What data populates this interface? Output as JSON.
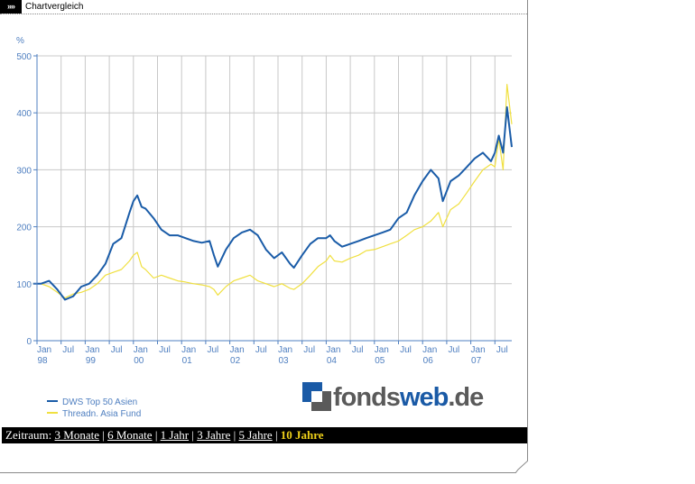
{
  "header": {
    "arrows": "»»",
    "title": "Chartvergleich"
  },
  "logo": {
    "part1": "fonds",
    "part2": "web",
    "part3": ".de"
  },
  "zeitraum": {
    "label": "Zeitraum:",
    "options": [
      "3 Monate",
      "6 Monate",
      "1 Jahr",
      "3 Jahre",
      "5 Jahre"
    ],
    "active": "10 Jahre"
  },
  "colors": {
    "series1": "#1a5ca8",
    "series2": "#f0e040",
    "axis": "#4f7fc0",
    "grid": "#c8c8c8",
    "active": "#f0d21a"
  },
  "chart_data": {
    "type": "line",
    "title": "",
    "ylabel": "%",
    "ylim": [
      0,
      500
    ],
    "yticks": [
      0,
      100,
      200,
      300,
      400,
      500
    ],
    "xlim": [
      1998.0,
      2007.85
    ],
    "xtick_labels": [
      {
        "x": 1998.0,
        "l1": "Jan",
        "l2": "98"
      },
      {
        "x": 1998.5,
        "l1": "Jul",
        "l2": ""
      },
      {
        "x": 1999.0,
        "l1": "Jan",
        "l2": "99"
      },
      {
        "x": 1999.5,
        "l1": "Jul",
        "l2": ""
      },
      {
        "x": 2000.0,
        "l1": "Jan",
        "l2": "00"
      },
      {
        "x": 2000.5,
        "l1": "Jul",
        "l2": ""
      },
      {
        "x": 2001.0,
        "l1": "Jan",
        "l2": "01"
      },
      {
        "x": 2001.5,
        "l1": "Jul",
        "l2": ""
      },
      {
        "x": 2002.0,
        "l1": "Jan",
        "l2": "02"
      },
      {
        "x": 2002.5,
        "l1": "Jul",
        "l2": ""
      },
      {
        "x": 2003.0,
        "l1": "Jan",
        "l2": "03"
      },
      {
        "x": 2003.5,
        "l1": "Jul",
        "l2": ""
      },
      {
        "x": 2004.0,
        "l1": "Jan",
        "l2": "04"
      },
      {
        "x": 2004.5,
        "l1": "Jul",
        "l2": ""
      },
      {
        "x": 2005.0,
        "l1": "Jan",
        "l2": "05"
      },
      {
        "x": 2005.5,
        "l1": "Jul",
        "l2": ""
      },
      {
        "x": 2006.0,
        "l1": "Jan",
        "l2": "06"
      },
      {
        "x": 2006.5,
        "l1": "Jul",
        "l2": ""
      },
      {
        "x": 2007.0,
        "l1": "Jan",
        "l2": "07"
      },
      {
        "x": 2007.5,
        "l1": "Jul",
        "l2": ""
      }
    ],
    "grid": true,
    "legend_position": "bottom-left",
    "series": [
      {
        "name": "DWS Top 50 Asien",
        "color": "#1a5ca8",
        "x": [
          1997.92,
          1998.08,
          1998.25,
          1998.42,
          1998.58,
          1998.75,
          1998.92,
          1999.08,
          1999.25,
          1999.42,
          1999.58,
          1999.75,
          1999.92,
          2000.0,
          2000.08,
          2000.17,
          2000.25,
          2000.42,
          2000.58,
          2000.75,
          2000.92,
          2001.08,
          2001.25,
          2001.42,
          2001.58,
          2001.67,
          2001.75,
          2001.92,
          2002.08,
          2002.25,
          2002.42,
          2002.58,
          2002.75,
          2002.92,
          2003.08,
          2003.25,
          2003.33,
          2003.5,
          2003.67,
          2003.83,
          2004.0,
          2004.08,
          2004.17,
          2004.33,
          2004.5,
          2004.67,
          2004.83,
          2005.0,
          2005.17,
          2005.33,
          2005.5,
          2005.67,
          2005.83,
          2006.0,
          2006.17,
          2006.33,
          2006.42,
          2006.58,
          2006.75,
          2006.92,
          2007.08,
          2007.25,
          2007.42,
          2007.5,
          2007.58,
          2007.67,
          2007.75,
          2007.85
        ],
        "values": [
          100,
          100,
          105,
          90,
          72,
          78,
          95,
          100,
          115,
          135,
          170,
          180,
          225,
          245,
          255,
          235,
          232,
          215,
          195,
          185,
          185,
          180,
          175,
          172,
          175,
          150,
          130,
          160,
          180,
          190,
          195,
          185,
          160,
          145,
          155,
          135,
          128,
          150,
          170,
          180,
          180,
          185,
          175,
          165,
          170,
          175,
          180,
          185,
          190,
          195,
          215,
          225,
          255,
          280,
          300,
          285,
          245,
          280,
          290,
          305,
          320,
          330,
          315,
          330,
          360,
          330,
          410,
          340
        ]
      },
      {
        "name": "Threadn. Asia Fund",
        "color": "#f0e040",
        "x": [
          1997.92,
          1998.08,
          1998.25,
          1998.42,
          1998.58,
          1998.75,
          1998.92,
          1999.08,
          1999.25,
          1999.42,
          1999.58,
          1999.75,
          1999.92,
          2000.0,
          2000.08,
          2000.17,
          2000.25,
          2000.42,
          2000.58,
          2000.75,
          2000.92,
          2001.08,
          2001.25,
          2001.42,
          2001.58,
          2001.67,
          2001.75,
          2001.92,
          2002.08,
          2002.25,
          2002.42,
          2002.58,
          2002.75,
          2002.92,
          2003.08,
          2003.25,
          2003.33,
          2003.5,
          2003.67,
          2003.83,
          2004.0,
          2004.08,
          2004.17,
          2004.33,
          2004.5,
          2004.67,
          2004.83,
          2005.0,
          2005.17,
          2005.33,
          2005.5,
          2005.67,
          2005.83,
          2006.0,
          2006.17,
          2006.33,
          2006.42,
          2006.58,
          2006.75,
          2006.92,
          2007.08,
          2007.25,
          2007.42,
          2007.5,
          2007.58,
          2007.67,
          2007.75,
          2007.85
        ],
        "values": [
          100,
          100,
          95,
          85,
          75,
          82,
          85,
          90,
          100,
          115,
          120,
          125,
          140,
          150,
          155,
          130,
          125,
          110,
          115,
          110,
          105,
          103,
          100,
          98,
          95,
          90,
          80,
          95,
          105,
          110,
          115,
          105,
          100,
          95,
          100,
          92,
          90,
          100,
          115,
          130,
          140,
          150,
          140,
          138,
          145,
          150,
          158,
          160,
          165,
          170,
          175,
          185,
          195,
          200,
          210,
          225,
          200,
          230,
          240,
          260,
          280,
          300,
          310,
          305,
          355,
          300,
          450,
          380
        ]
      }
    ]
  }
}
